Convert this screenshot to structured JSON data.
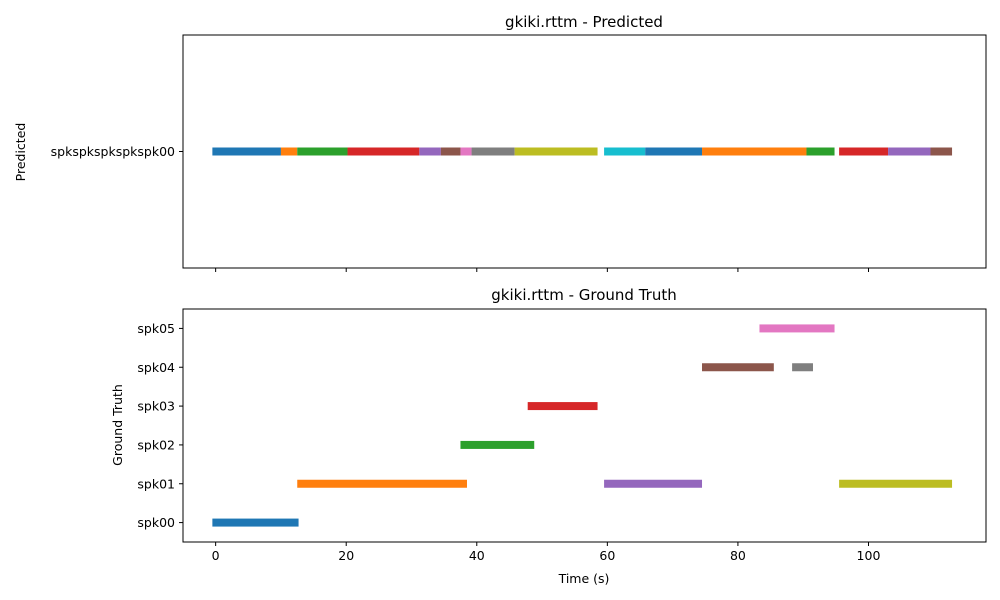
{
  "chart_data": [
    {
      "type": "broken_barh",
      "title": "gkiki.rttm - Predicted",
      "ylabel": "Predicted",
      "xlabel": "",
      "xlim": [
        -5,
        118
      ],
      "x_ticks": [
        0,
        20,
        40,
        60,
        80,
        100
      ],
      "x_tick_labels_visible": false,
      "y_categories": [
        "spkspkspkspkspk00"
      ],
      "grid": false,
      "segments": [
        {
          "row": 0,
          "start": -0.5,
          "end": 10,
          "color": "#1f77b4"
        },
        {
          "row": 0,
          "start": 10,
          "end": 12.5,
          "color": "#ff7f0e"
        },
        {
          "row": 0,
          "start": 12.5,
          "end": 20.2,
          "color": "#2ca02c"
        },
        {
          "row": 0,
          "start": 20.2,
          "end": 31.2,
          "color": "#d62728"
        },
        {
          "row": 0,
          "start": 31.2,
          "end": 34.5,
          "color": "#9467bd"
        },
        {
          "row": 0,
          "start": 34.5,
          "end": 37.5,
          "color": "#8c564b"
        },
        {
          "row": 0,
          "start": 37.5,
          "end": 39.2,
          "color": "#e377c2"
        },
        {
          "row": 0,
          "start": 39.2,
          "end": 45.8,
          "color": "#7f7f7f"
        },
        {
          "row": 0,
          "start": 45.8,
          "end": 58.5,
          "color": "#bcbd22"
        },
        {
          "row": 0,
          "start": 59.5,
          "end": 65.8,
          "color": "#17becf"
        },
        {
          "row": 0,
          "start": 65.8,
          "end": 74.5,
          "color": "#1f77b4"
        },
        {
          "row": 0,
          "start": 74.5,
          "end": 90.5,
          "color": "#ff7f0e"
        },
        {
          "row": 0,
          "start": 90.5,
          "end": 94.8,
          "color": "#2ca02c"
        },
        {
          "row": 0,
          "start": 95.5,
          "end": 103,
          "color": "#d62728"
        },
        {
          "row": 0,
          "start": 103,
          "end": 109.5,
          "color": "#9467bd"
        },
        {
          "row": 0,
          "start": 109.5,
          "end": 112.8,
          "color": "#8c564b"
        }
      ]
    },
    {
      "type": "broken_barh",
      "title": "gkiki.rttm - Ground Truth",
      "ylabel": "Ground Truth",
      "xlabel": "Time (s)",
      "xlim": [
        -5,
        118
      ],
      "x_ticks": [
        0,
        20,
        40,
        60,
        80,
        100
      ],
      "x_tick_labels_visible": true,
      "y_categories": [
        "spk00",
        "spk01",
        "spk02",
        "spk03",
        "spk04",
        "spk05"
      ],
      "grid": false,
      "segments": [
        {
          "row": 0,
          "start": -0.5,
          "end": 12.7,
          "color": "#1f77b4"
        },
        {
          "row": 1,
          "start": 12.5,
          "end": 38.5,
          "color": "#ff7f0e"
        },
        {
          "row": 2,
          "start": 37.5,
          "end": 48.8,
          "color": "#2ca02c"
        },
        {
          "row": 3,
          "start": 47.8,
          "end": 58.5,
          "color": "#d62728"
        },
        {
          "row": 1,
          "start": 59.5,
          "end": 74.5,
          "color": "#9467bd"
        },
        {
          "row": 4,
          "start": 74.5,
          "end": 85.5,
          "color": "#8c564b"
        },
        {
          "row": 5,
          "start": 83.3,
          "end": 94.8,
          "color": "#e377c2"
        },
        {
          "row": 4,
          "start": 88.3,
          "end": 91.5,
          "color": "#7f7f7f"
        },
        {
          "row": 1,
          "start": 95.5,
          "end": 112.8,
          "color": "#bcbd22"
        }
      ]
    }
  ]
}
